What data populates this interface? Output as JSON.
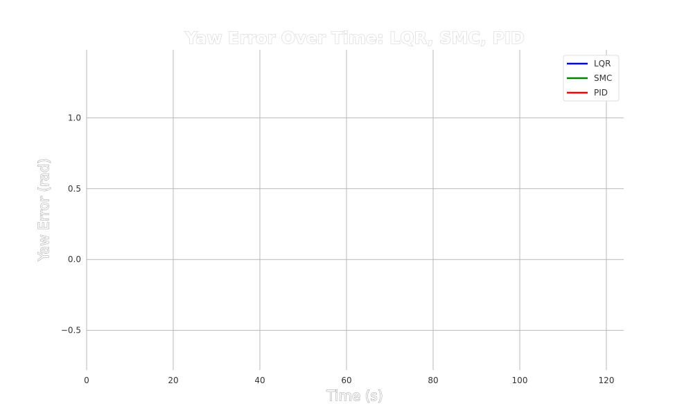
{
  "chart_data": {
    "type": "line",
    "title": "Yaw Error Over Time: LQR, SMC, PID",
    "xlabel": "Time (s)",
    "ylabel": "Yaw Error (rad)",
    "xlim": [
      0,
      124
    ],
    "ylim": [
      -0.78,
      1.48
    ],
    "x_ticks": [
      0,
      20,
      40,
      60,
      80,
      100,
      120
    ],
    "x_tick_labels": [
      "0",
      "20",
      "40",
      "60",
      "80",
      "100",
      "120"
    ],
    "y_ticks": [
      -0.5,
      0.0,
      0.5,
      1.0
    ],
    "y_tick_labels": [
      "−0.5",
      "0.0",
      "0.5",
      "1.0"
    ],
    "grid": true,
    "legend_position": "top-right",
    "series": [
      {
        "name": "LQR",
        "color": "#0000ff",
        "x": [],
        "y": []
      },
      {
        "name": "SMC",
        "color": "#008000",
        "x": [],
        "y": []
      },
      {
        "name": "PID",
        "color": "#ff0000",
        "x": [],
        "y": []
      }
    ]
  }
}
